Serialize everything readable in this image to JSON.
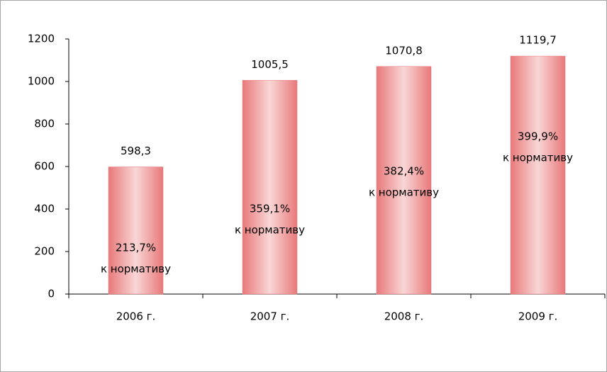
{
  "chart_data": {
    "type": "bar",
    "categories": [
      "2006 г.",
      "2007 г.",
      "2008 г.",
      "2009 г."
    ],
    "values": [
      598.3,
      1005.5,
      1070.8,
      1119.7
    ],
    "value_labels": [
      "598,3",
      "1005,5",
      "1070,8",
      "1119,7"
    ],
    "annotations": [
      [
        "213,7%",
        "к нормативу"
      ],
      [
        "359,1%",
        "к нормативу"
      ],
      [
        "382,4%",
        "к нормативу"
      ],
      [
        "399,9%",
        "к нормативу"
      ]
    ],
    "color": "#e8797a",
    "ylim": [
      0,
      1200
    ],
    "yticks": [
      0,
      200,
      400,
      600,
      800,
      1000,
      1200
    ],
    "grid": false
  }
}
